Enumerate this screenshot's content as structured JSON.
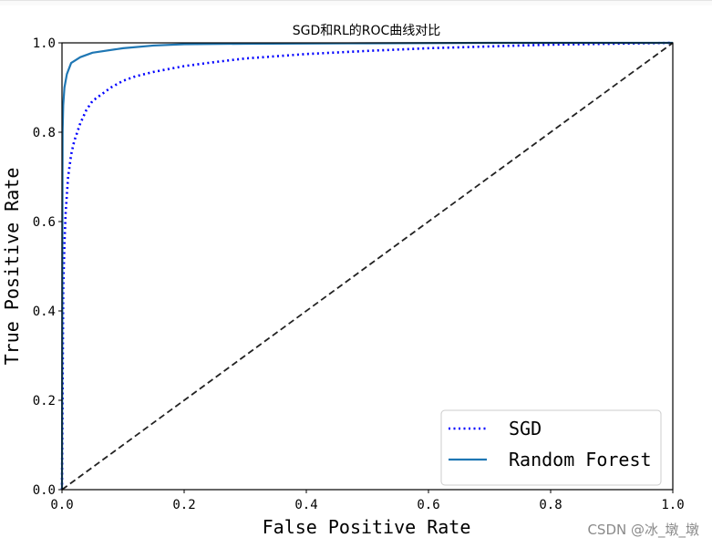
{
  "chart_data": {
    "type": "line",
    "title": "SGD和RL的ROC曲线对比",
    "xlabel": "False Positive Rate",
    "ylabel": "True Positive Rate",
    "xlim": [
      0,
      1
    ],
    "ylim": [
      0,
      1
    ],
    "xticks": [
      "0.0",
      "0.2",
      "0.4",
      "0.6",
      "0.8",
      "1.0"
    ],
    "yticks": [
      "0.0",
      "0.2",
      "0.4",
      "0.6",
      "0.8",
      "1.0"
    ],
    "grid": false,
    "legend_position": "lower-right",
    "series": [
      {
        "name": "SGD",
        "style": "dotted",
        "color": "#0000ff",
        "x": [
          0,
          0.002,
          0.004,
          0.006,
          0.01,
          0.015,
          0.02,
          0.03,
          0.04,
          0.05,
          0.06,
          0.08,
          0.1,
          0.12,
          0.15,
          0.2,
          0.25,
          0.3,
          0.4,
          0.5,
          0.6,
          0.7,
          0.8,
          0.9,
          1.0
        ],
        "y": [
          0,
          0.45,
          0.55,
          0.62,
          0.7,
          0.75,
          0.78,
          0.82,
          0.85,
          0.87,
          0.88,
          0.9,
          0.915,
          0.925,
          0.935,
          0.948,
          0.957,
          0.965,
          0.975,
          0.982,
          0.988,
          0.992,
          0.996,
          0.998,
          1.0
        ]
      },
      {
        "name": "Random Forest",
        "style": "solid",
        "color": "#1f77b4",
        "x": [
          0,
          0.001,
          0.002,
          0.004,
          0.008,
          0.015,
          0.03,
          0.05,
          0.1,
          0.15,
          0.2,
          0.3,
          0.5,
          0.7,
          1.0
        ],
        "y": [
          0,
          0.8,
          0.86,
          0.9,
          0.93,
          0.955,
          0.968,
          0.978,
          0.988,
          0.994,
          0.997,
          0.998,
          0.999,
          1.0,
          1.0
        ]
      },
      {
        "name": "",
        "style": "dashed",
        "color": "#222222",
        "x": [
          0,
          1
        ],
        "y": [
          0,
          1
        ]
      }
    ]
  },
  "watermark": "CSDN @冰_墩_墩"
}
